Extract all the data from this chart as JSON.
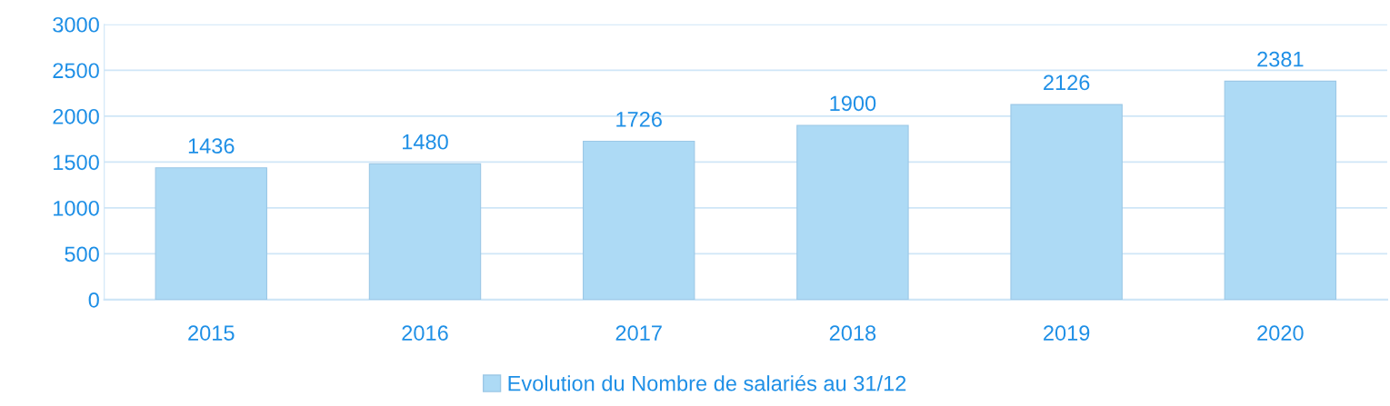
{
  "chart_data": {
    "type": "bar",
    "categories": [
      "2015",
      "2016",
      "2017",
      "2018",
      "2019",
      "2020"
    ],
    "series": [
      {
        "name": "Evolution du Nombre de salariés au 31/12",
        "color": "#addaf5",
        "values": [
          1436,
          1480,
          1726,
          1900,
          2126,
          2381
        ]
      }
    ],
    "ylim": [
      0,
      3000
    ],
    "yticks": [
      0,
      500,
      1000,
      1500,
      2000,
      2500,
      3000
    ],
    "grid": "y",
    "legend": "bottom",
    "data_labels": true
  }
}
